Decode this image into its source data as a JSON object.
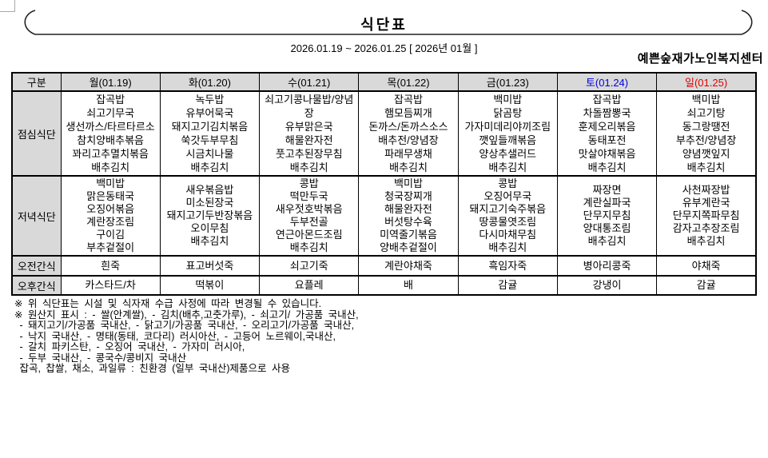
{
  "title": "식단표",
  "date_range": "2026.01.19 ~ 2026.01.25 [ 2026년 01월 ]",
  "facility": "예쁜숲재가노인복지센터",
  "colors": {
    "saturday_header": "#0000dd",
    "sunday_header": "#dd0000",
    "header_bg": "#d9d9d9",
    "border": "#000000"
  },
  "table": {
    "corner_header": "구분",
    "day_headers": [
      {
        "label": "월(01.19)",
        "color": "#000000"
      },
      {
        "label": "화(01.20)",
        "color": "#000000"
      },
      {
        "label": "수(01.21)",
        "color": "#000000"
      },
      {
        "label": "목(01.22)",
        "color": "#000000"
      },
      {
        "label": "금(01.23)",
        "color": "#000000"
      },
      {
        "label": "토(01.24)",
        "color": "#0000dd"
      },
      {
        "label": "일(01.25)",
        "color": "#dd0000"
      }
    ],
    "rows": [
      {
        "label": "점심식단",
        "cells": [
          [
            "잡곡밥",
            "쇠고기무국",
            "생선까스/타르타르소",
            "참치양배추볶음",
            "꽈리고추멸치볶음",
            "배추김치"
          ],
          [
            "녹두밥",
            "유부어묵국",
            "돼지고기김치볶음",
            "쑥갓두부무침",
            "시금치나물",
            "배추김치"
          ],
          [
            "쇠고기콩나물밥/양념장",
            "유부맑은국",
            "해물완자전",
            "풋고추된장무침",
            "배추김치"
          ],
          [
            "잡곡밥",
            "햄모듬찌개",
            "돈까스/돈까스소스",
            "배추전/양념장",
            "파래무생채",
            "배추김치"
          ],
          [
            "백미밥",
            "닭곰탕",
            "가자미데리야끼조림",
            "깻잎들깨볶음",
            "양상추샐러드",
            "배추김치"
          ],
          [
            "잡곡밥",
            "차돌짬뽕국",
            "훈제오리볶음",
            "동태포전",
            "맛살야채볶음",
            "배추김치"
          ],
          [
            "백미밥",
            "쇠고기탕",
            "동그랑땡전",
            "부추전/양념장",
            "양념깻잎지",
            "배추김치"
          ]
        ]
      },
      {
        "label": "저녁식단",
        "cells": [
          [
            "백미밥",
            "맑은동태국",
            "오징어볶음",
            "계란장조림",
            "구이김",
            "부추겉절이"
          ],
          [
            "새우볶음밥",
            "미소된장국",
            "돼지고기두반장볶음",
            "오이무침",
            "배추김치"
          ],
          [
            "콩밥",
            "떡만두국",
            "새우젓호박볶음",
            "두부전골",
            "연근아몬드조림",
            "배추김치"
          ],
          [
            "백미밥",
            "청국장찌개",
            "해물완자전",
            "버섯탕수육",
            "미역줄기볶음",
            "양배추겉절이"
          ],
          [
            "콩밥",
            "오징어무국",
            "돼지고기숙주볶음",
            "땅콩물엿조림",
            "다시마채무침",
            "배추김치"
          ],
          [
            "짜장면",
            "계란실파국",
            "단무지무침",
            "양대통조림",
            "배추김치"
          ],
          [
            "사천짜장밥",
            "유부계란국",
            "단무지쪽파무침",
            "감자고추장조림",
            "배추김치"
          ]
        ]
      },
      {
        "label": "오전간식",
        "cells": [
          [
            "흰죽"
          ],
          [
            "표고버섯죽"
          ],
          [
            "쇠고기죽"
          ],
          [
            "계란야채죽"
          ],
          [
            "흑임자죽"
          ],
          [
            "병아리콩죽"
          ],
          [
            "야채죽"
          ]
        ]
      },
      {
        "label": "오후간식",
        "cells": [
          [
            "카스타드/차"
          ],
          [
            "떡볶이"
          ],
          [
            "요플레"
          ],
          [
            "배"
          ],
          [
            "감귤"
          ],
          [
            "강냉이"
          ],
          [
            "감귤"
          ]
        ]
      }
    ]
  },
  "notes": [
    "※ 위 식단표는 시설 및 식자재 수급 사정에 따라 변경될 수 있습니다.",
    "※ 원산지 표시 : - 쌀(안계쌀), - 김치(배추,고춧가루), - 쇠고기/ 가공품 국내산,",
    " - 돼지고기/가공품 국내산, - 닭고기/가공품 국내산, - 오리고기/가공품 국내산,",
    " - 낙지 국내산, - 명태(동태, 코다리) 러시아산, - 고등어 노르웨이,국내산,",
    " - 갈치 파키스탄, - 오징어 국내산, - 가자미 러시아,",
    " - 두부 국내산, - 콩국수/콩비지 국내산",
    " 잡곡, 찹쌀, 채소, 과일류 : 친환경 (일부 국내산)제품으로 사용"
  ]
}
